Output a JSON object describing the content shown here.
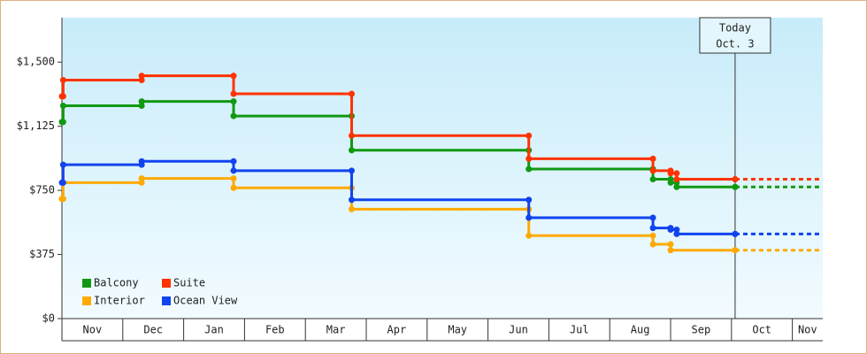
{
  "chart_data": {
    "type": "step",
    "ylim": [
      0,
      1760
    ],
    "yticks": [
      {
        "value": 0,
        "label": "$0"
      },
      {
        "value": 375,
        "label": "$375"
      },
      {
        "value": 750,
        "label": "$750"
      },
      {
        "value": 1125,
        "label": "$1,125"
      },
      {
        "value": 1500,
        "label": "$1,500"
      }
    ],
    "xlim": [
      0,
      12.5
    ],
    "xticks": [
      {
        "value": 0.5,
        "label": "Nov"
      },
      {
        "value": 1.5,
        "label": "Dec"
      },
      {
        "value": 2.5,
        "label": "Jan"
      },
      {
        "value": 3.5,
        "label": "Feb"
      },
      {
        "value": 4.5,
        "label": "Mar"
      },
      {
        "value": 5.5,
        "label": "Apr"
      },
      {
        "value": 6.5,
        "label": "May"
      },
      {
        "value": 7.5,
        "label": "Jun"
      },
      {
        "value": 8.5,
        "label": "Jul"
      },
      {
        "value": 9.5,
        "label": "Aug"
      },
      {
        "value": 10.5,
        "label": "Sep"
      },
      {
        "value": 11.5,
        "label": "Oct"
      },
      {
        "value": 12.25,
        "label": "Nov"
      }
    ],
    "series": [
      {
        "name": "Balcony",
        "color": "#119911",
        "x": [
          0,
          0.02,
          1.31,
          2.82,
          4.76,
          7.67,
          9.71,
          10.0,
          10.1,
          11.06
        ],
        "values": [
          1150,
          1245,
          1270,
          1185,
          985,
          875,
          815,
          795,
          770,
          770
        ]
      },
      {
        "name": "Suite",
        "color": "#ff3300",
        "x": [
          0,
          0.02,
          1.31,
          2.82,
          4.76,
          7.67,
          9.71,
          10.0,
          10.1,
          11.06
        ],
        "values": [
          1300,
          1395,
          1420,
          1315,
          1070,
          935,
          865,
          850,
          815,
          815
        ]
      },
      {
        "name": "Interior",
        "color": "#ffaa00",
        "x": [
          0,
          0.02,
          1.31,
          2.82,
          4.76,
          7.67,
          9.71,
          10.0,
          11.06
        ],
        "values": [
          700,
          795,
          820,
          765,
          640,
          485,
          435,
          400,
          400
        ]
      },
      {
        "name": "Ocean View",
        "color": "#1144ee",
        "x": [
          0,
          0.02,
          1.31,
          2.82,
          4.76,
          7.67,
          9.71,
          10.0,
          10.1,
          11.06
        ],
        "values": [
          795,
          900,
          920,
          865,
          695,
          590,
          530,
          520,
          495,
          495
        ]
      }
    ],
    "annotation": {
      "x": 11.06,
      "lines": [
        "Today",
        "Oct. 3"
      ]
    }
  }
}
